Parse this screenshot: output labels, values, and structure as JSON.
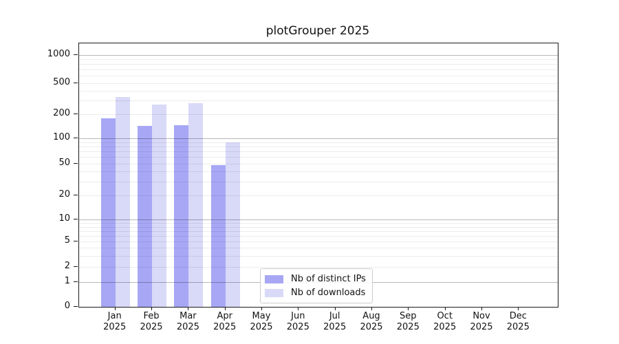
{
  "chart_data": {
    "type": "bar",
    "title": "plotGrouper 2025",
    "categories": [
      "Jan",
      "Feb",
      "Mar",
      "Apr",
      "May",
      "Jun",
      "Jul",
      "Aug",
      "Sep",
      "Oct",
      "Nov",
      "Dec"
    ],
    "x_tick_year": "2025",
    "series": [
      {
        "name": "Nb of distinct IPs",
        "color": "#a7a7f5",
        "values": [
          178,
          144,
          147,
          48,
          0,
          0,
          0,
          0,
          0,
          0,
          0,
          0
        ]
      },
      {
        "name": "Nb of downloads",
        "color": "#d9d9f8",
        "values": [
          330,
          267,
          277,
          90,
          0,
          0,
          0,
          0,
          0,
          0,
          0,
          0
        ]
      }
    ],
    "yaxis": {
      "scale": "symlog",
      "tick_values": [
        0,
        1,
        2,
        5,
        10,
        20,
        50,
        100,
        200,
        500,
        1000
      ],
      "ylim": [
        0,
        1450
      ],
      "major_grid_values": [
        1,
        10,
        100,
        1000
      ],
      "minor_grid_values": [
        2,
        3,
        4,
        5,
        6,
        7,
        8,
        9,
        20,
        30,
        40,
        50,
        60,
        70,
        80,
        90,
        200,
        300,
        400,
        500,
        600,
        700,
        800,
        900
      ]
    },
    "legend": {
      "position": "lower center",
      "entries": [
        "Nb of distinct IPs",
        "Nb of downloads"
      ]
    },
    "grid": true,
    "colors": {
      "major_grid": "#b3b3b3",
      "minor_grid": "#e8e8e8",
      "spine": "#1a1a1a",
      "background": "#ffffff",
      "text": "#111111"
    }
  }
}
